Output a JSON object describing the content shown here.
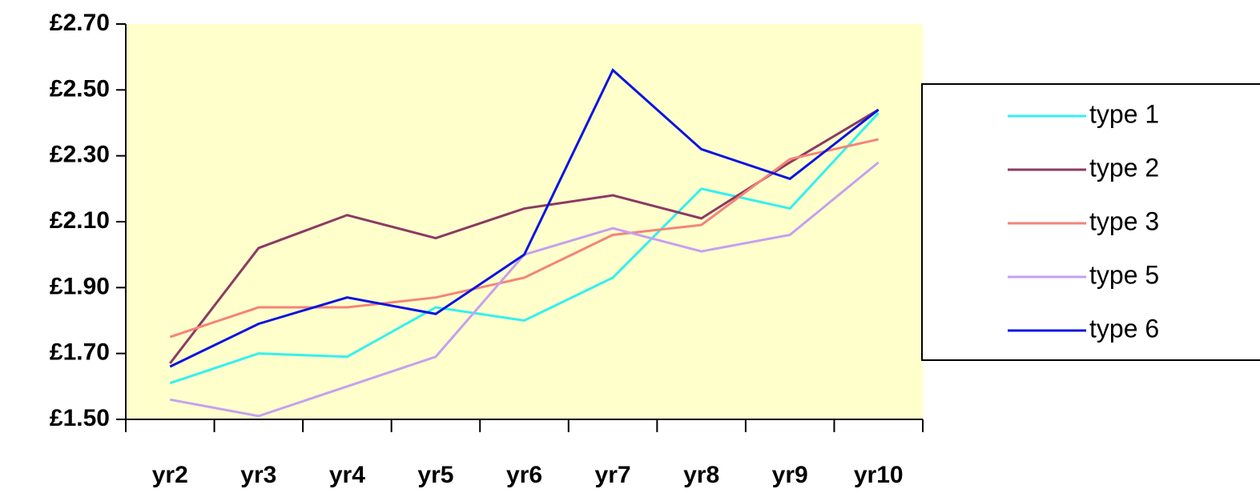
{
  "chart_data": {
    "type": "line",
    "categories": [
      "yr2",
      "yr3",
      "yr4",
      "yr5",
      "yr6",
      "yr7",
      "yr8",
      "yr9",
      "yr10"
    ],
    "series": [
      {
        "name": "type 1",
        "color": "#33f0f0",
        "values": [
          1.61,
          1.7,
          1.69,
          1.84,
          1.8,
          1.93,
          2.2,
          2.14,
          2.43
        ]
      },
      {
        "name": "type 2",
        "color": "#8b3a62",
        "values": [
          1.67,
          2.02,
          2.12,
          2.05,
          2.14,
          2.18,
          2.11,
          2.28,
          2.44
        ]
      },
      {
        "name": "type 3",
        "color": "#f5837a",
        "values": [
          1.75,
          1.84,
          1.84,
          1.87,
          1.93,
          2.06,
          2.09,
          2.29,
          2.35
        ]
      },
      {
        "name": "type 5",
        "color": "#c6a0f0",
        "values": [
          1.56,
          1.51,
          1.6,
          1.69,
          2.0,
          2.08,
          2.01,
          2.06,
          2.28
        ]
      },
      {
        "name": "type 6",
        "color": "#0a14e0",
        "values": [
          1.66,
          1.79,
          1.87,
          1.82,
          2.0,
          2.56,
          2.32,
          2.23,
          2.44
        ]
      }
    ],
    "ylim": [
      1.5,
      2.7
    ],
    "yticks": [
      {
        "value": 1.5,
        "label": "£1.50"
      },
      {
        "value": 1.7,
        "label": "£1.70"
      },
      {
        "value": 1.9,
        "label": "£1.90"
      },
      {
        "value": 2.1,
        "label": "£2.10"
      },
      {
        "value": 2.3,
        "label": "£2.30"
      },
      {
        "value": 2.5,
        "label": "£2.50"
      },
      {
        "value": 2.7,
        "label": "£2.70"
      }
    ],
    "plot_background": "#ffffcc",
    "grid": false,
    "legend": "right"
  }
}
